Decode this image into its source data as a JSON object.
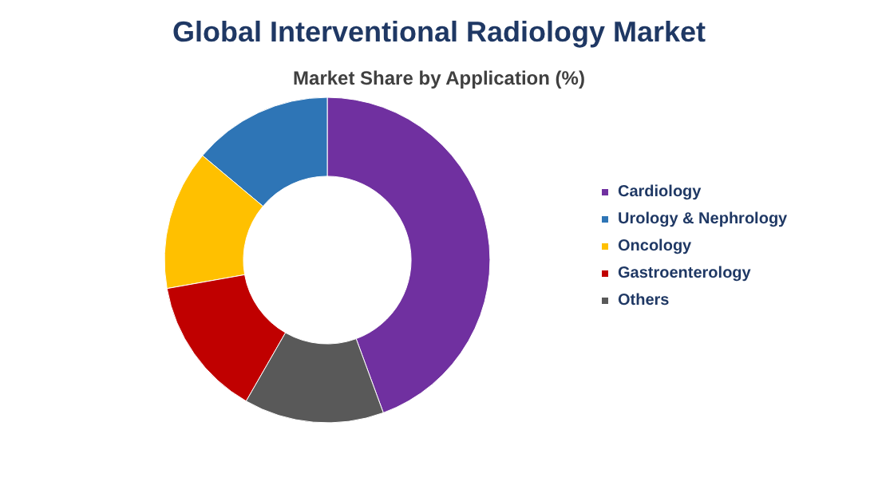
{
  "chart_data": {
    "type": "donut",
    "title": "Global Interventional Radiology Market",
    "subtitle": "Market Share by Application (%)",
    "categories": [
      "Cardiology",
      "Urology & Nephrology",
      "Oncology",
      "Gastroenterology",
      "Others"
    ],
    "values": [
      44.4,
      13.9,
      13.9,
      13.9,
      13.9
    ],
    "colors": [
      "#7030a0",
      "#2e75b6",
      "#ffc000",
      "#c00000",
      "#595959"
    ],
    "legend": "right"
  }
}
